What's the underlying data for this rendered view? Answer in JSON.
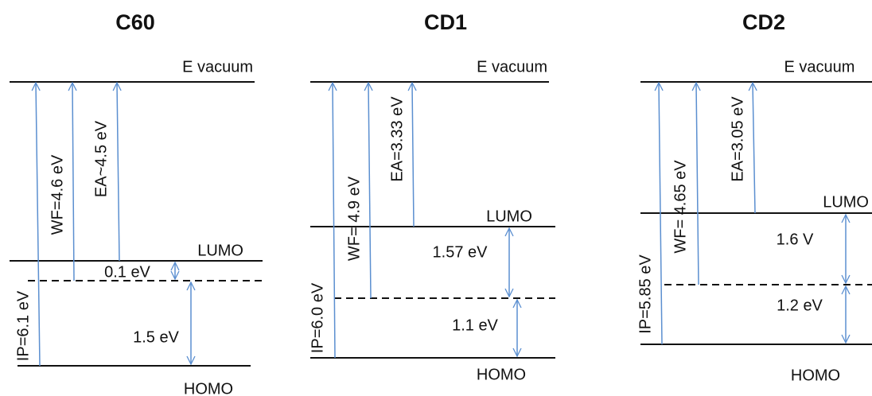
{
  "panels": [
    {
      "title": "C60",
      "vacuum": "E vacuum",
      "lumo": "LUMO",
      "homo": "HOMO",
      "ip": "IP=6.1 eV",
      "wf": "WF=4.6 eV",
      "ea": "EA~4.5 eV",
      "gap_upper": "0.1 eV",
      "gap_lower": "1.5 eV"
    },
    {
      "title": "CD1",
      "vacuum": "E vacuum",
      "lumo": "LUMO",
      "homo": "HOMO",
      "ip": "IP=6.0 eV",
      "wf": "WF=  4.9 eV",
      "ea": "EA=3.33 eV",
      "gap_upper": "1.57 eV",
      "gap_lower": "1.1 eV"
    },
    {
      "title": "CD2",
      "vacuum": "E vacuum",
      "lumo": "LUMO",
      "homo": "HOMO",
      "ip": "IP=5.85 eV",
      "wf": "WF= 4.65 eV",
      "ea": "EA=3.05 eV",
      "gap_upper": "1.6 V",
      "gap_lower": "1.2 eV"
    }
  ]
}
